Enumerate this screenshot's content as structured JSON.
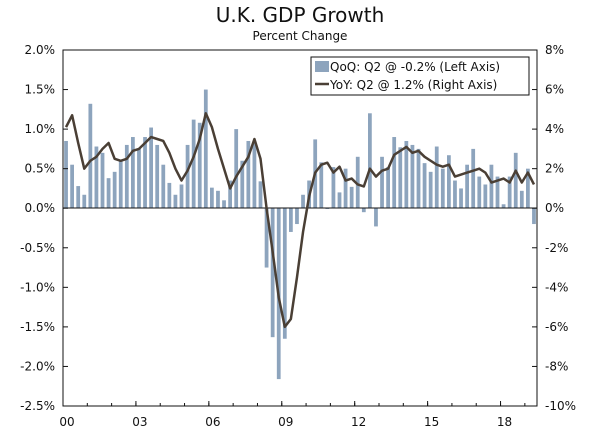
{
  "chart_data": {
    "type": "bar",
    "title": "U.K. GDP Growth",
    "subtitle": "Percent Change",
    "x_tick_labels": [
      "00",
      "03",
      "06",
      "09",
      "12",
      "15",
      "18"
    ],
    "y_left_ticks": [
      "2.0%",
      "1.5%",
      "1.0%",
      "0.5%",
      "0.0%",
      "-0.5%",
      "-1.0%",
      "-1.5%",
      "-2.0%",
      "-2.5%"
    ],
    "y_right_ticks": [
      "8%",
      "6%",
      "4%",
      "2%",
      "0%",
      "-2%",
      "-4%",
      "-6%",
      "-8%",
      "-10%"
    ],
    "ylim_left": [
      -2.5,
      2.0
    ],
    "ylim_right": [
      -10,
      8
    ],
    "x_range": [
      2000.0,
      2019.5
    ],
    "grid": false,
    "legend_position": "top-right",
    "colors": {
      "bars": "#8da4bd",
      "line": "#4a3f35"
    },
    "series": [
      {
        "name": "QoQ: Q2 @ -0.2% (Left Axis)",
        "type": "bar",
        "axis": "left",
        "x": [
          2000.0,
          2000.25,
          2000.5,
          2000.75,
          2001.0,
          2001.25,
          2001.5,
          2001.75,
          2002.0,
          2002.25,
          2002.5,
          2002.75,
          2003.0,
          2003.25,
          2003.5,
          2003.75,
          2004.0,
          2004.25,
          2004.5,
          2004.75,
          2005.0,
          2005.25,
          2005.5,
          2005.75,
          2006.0,
          2006.25,
          2006.5,
          2006.75,
          2007.0,
          2007.25,
          2007.5,
          2007.75,
          2008.0,
          2008.25,
          2008.5,
          2008.75,
          2009.0,
          2009.25,
          2009.5,
          2009.75,
          2010.0,
          2010.25,
          2010.5,
          2010.75,
          2011.0,
          2011.25,
          2011.5,
          2011.75,
          2012.0,
          2012.25,
          2012.5,
          2012.75,
          2013.0,
          2013.25,
          2013.5,
          2013.75,
          2014.0,
          2014.25,
          2014.5,
          2014.75,
          2015.0,
          2015.25,
          2015.5,
          2015.75,
          2016.0,
          2016.25,
          2016.5,
          2016.75,
          2017.0,
          2017.25,
          2017.5,
          2017.75,
          2018.0,
          2018.25,
          2018.5,
          2018.75,
          2019.0,
          2019.25
        ],
        "values": [
          0.85,
          0.55,
          0.28,
          0.17,
          1.32,
          0.78,
          0.7,
          0.38,
          0.46,
          0.6,
          0.8,
          0.9,
          0.75,
          0.9,
          1.02,
          0.8,
          0.55,
          0.32,
          0.17,
          0.3,
          0.8,
          1.12,
          1.08,
          1.5,
          0.26,
          0.22,
          0.1,
          0.35,
          1.0,
          0.6,
          0.85,
          0.85,
          0.34,
          -0.75,
          -1.63,
          -2.16,
          -1.65,
          -0.3,
          -0.2,
          0.17,
          0.35,
          0.87,
          0.58,
          -0.01,
          0.52,
          0.2,
          0.5,
          0.27,
          0.65,
          -0.05,
          1.2,
          -0.23,
          0.65,
          0.52,
          0.9,
          0.77,
          0.85,
          0.8,
          0.75,
          0.57,
          0.46,
          0.78,
          0.5,
          0.67,
          0.35,
          0.25,
          0.55,
          0.75,
          0.4,
          0.3,
          0.55,
          0.4,
          0.05,
          0.4,
          0.7,
          0.22,
          0.5,
          -0.2
        ]
      },
      {
        "name": "YoY: Q2 @ 1.2% (Right Axis)",
        "type": "line",
        "axis": "right",
        "x": [
          2000.0,
          2000.25,
          2000.5,
          2000.75,
          2001.0,
          2001.25,
          2001.5,
          2001.75,
          2002.0,
          2002.25,
          2002.5,
          2002.75,
          2003.0,
          2003.25,
          2003.5,
          2003.75,
          2004.0,
          2004.25,
          2004.5,
          2004.75,
          2005.0,
          2005.25,
          2005.5,
          2005.75,
          2006.0,
          2006.25,
          2006.5,
          2006.75,
          2007.0,
          2007.25,
          2007.5,
          2007.75,
          2008.0,
          2008.25,
          2008.5,
          2008.75,
          2009.0,
          2009.25,
          2009.5,
          2009.75,
          2010.0,
          2010.25,
          2010.5,
          2010.75,
          2011.0,
          2011.25,
          2011.5,
          2011.75,
          2012.0,
          2012.25,
          2012.5,
          2012.75,
          2013.0,
          2013.25,
          2013.5,
          2013.75,
          2014.0,
          2014.25,
          2014.5,
          2014.75,
          2015.0,
          2015.25,
          2015.5,
          2015.75,
          2016.0,
          2016.25,
          2016.5,
          2016.75,
          2017.0,
          2017.25,
          2017.5,
          2017.75,
          2018.0,
          2018.25,
          2018.5,
          2018.75,
          2019.0,
          2019.25
        ],
        "values": [
          4.1,
          4.7,
          3.3,
          2.0,
          2.4,
          2.6,
          3.0,
          3.3,
          2.5,
          2.4,
          2.5,
          2.9,
          3.0,
          3.3,
          3.6,
          3.5,
          3.4,
          2.8,
          2.0,
          1.4,
          1.9,
          2.6,
          3.5,
          4.8,
          4.1,
          3.0,
          2.0,
          1.0,
          1.6,
          2.1,
          2.6,
          3.5,
          2.5,
          0.0,
          -2.2,
          -4.5,
          -6.0,
          -5.6,
          -3.5,
          -1.2,
          0.6,
          1.8,
          2.2,
          2.3,
          1.8,
          2.1,
          1.4,
          1.5,
          1.2,
          1.1,
          2.0,
          1.6,
          1.9,
          2.0,
          2.7,
          2.9,
          3.1,
          2.8,
          2.9,
          2.6,
          2.4,
          2.2,
          2.1,
          2.2,
          1.6,
          1.7,
          1.8,
          1.9,
          2.0,
          1.8,
          1.3,
          1.4,
          1.5,
          1.3,
          1.9,
          1.3,
          1.8,
          1.2
        ]
      }
    ]
  }
}
